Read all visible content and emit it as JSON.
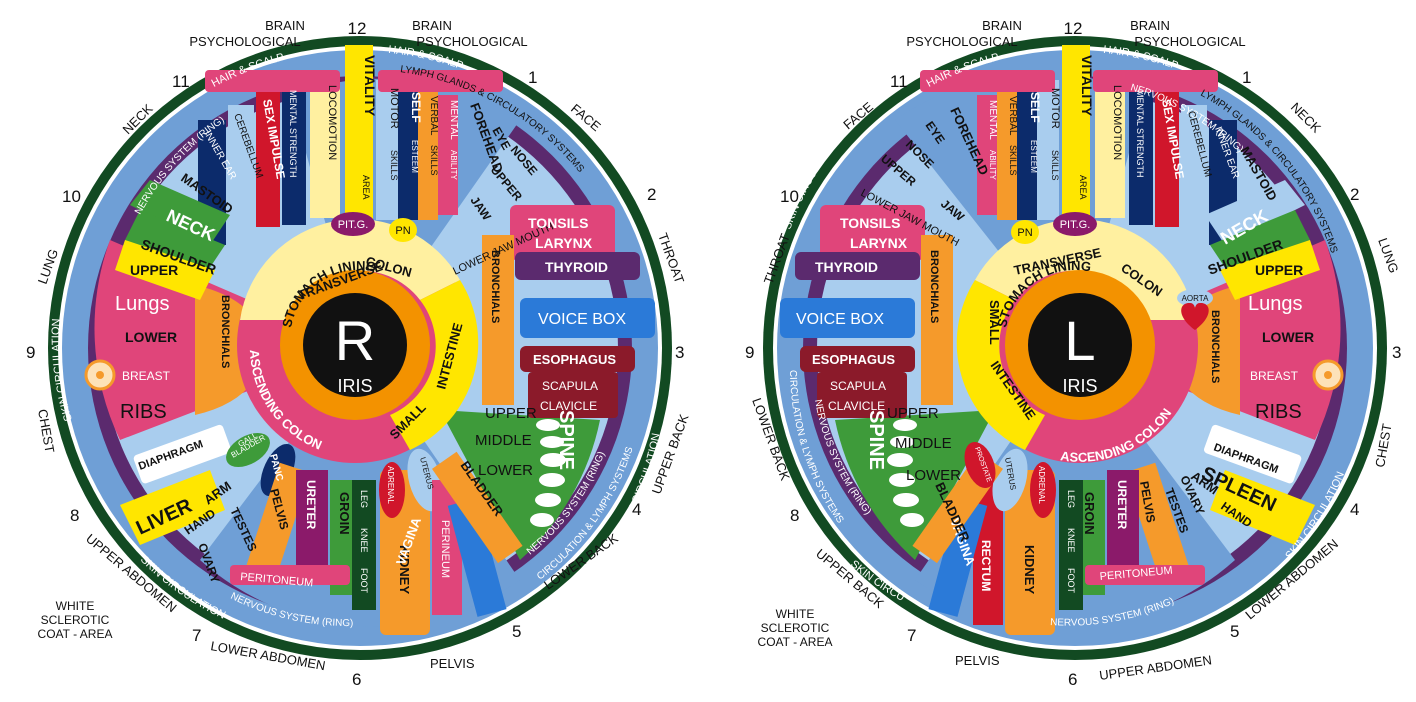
{
  "colors": {
    "ring_green": "#124a22",
    "ring_blue": "#6f9fd6",
    "ring_purple": "#5b2a6e",
    "pink": "#e0457a",
    "yellow": "#ffe600",
    "orange": "#f59a2b",
    "navy": "#0c2b6b",
    "red": "#d0162b",
    "light_blue": "#a9cdee",
    "green": "#3e9b3a",
    "dark_red": "#8b1a2a",
    "pale_yellow": "#fff0a0",
    "core_orange": "#f39200",
    "black": "#111111"
  },
  "right_iris": {
    "center_letter": "R",
    "center_word": "IRIS",
    "inner_ring": [
      "STOMACH LINING"
    ],
    "colon_labels": [
      "TRANSVERSE",
      "COLON",
      "ASCENDING COLON",
      "SMALL",
      "INTESTINE"
    ],
    "outer_labels": {
      "brain_left": [
        "BRAIN",
        "PSYCHOLOGICAL"
      ],
      "brain_right": [
        "BRAIN",
        "PSYCHOLOGICAL"
      ],
      "face": "FACE",
      "throat": "THROAT",
      "upper_back": "UPPER BACK",
      "lower_back": "LOWER BACK",
      "pelvis": "PELVIS",
      "lower_abdomen": "LOWER ABDOMEN",
      "upper_abdomen": "UPPER ABDOMEN",
      "white_sclerotic": [
        "WHITE",
        "SCLEROTIC",
        "COAT - AREA"
      ],
      "chest": "CHEST",
      "lung": "LUNG",
      "neck": "NECK"
    },
    "clock": [
      "12",
      "1",
      "2",
      "3",
      "4",
      "5",
      "6",
      "7",
      "8",
      "9",
      "10",
      "11"
    ],
    "ring_labels": {
      "hair_left": "HAIR & SCALP",
      "hair_right": "HAIR & SCALP",
      "lymph": "LYMPH GLANDS & CIRCULATORY SYSTEMS",
      "nervous_top": "NERVOUS SYSTEM (RING)",
      "nervous_bottom": "NERVOUS SYSTEM (RING)",
      "skin_left": "SKIN CIRCULATION",
      "skin_bottom": "SKIN CIRCULATION",
      "skin_right": "SKIN CIRCULATION",
      "circ_lymph": "CIRCULATION & LYMPH SYSTEMS",
      "nervous_right": "NERVOUS SYSTEM (RING)"
    },
    "organs": {
      "vitality": "VITALITY",
      "area": "AREA",
      "locomotion": "LOCOMOTION",
      "motor": "MOTOR",
      "skills": "SKILLS",
      "self": "SELF",
      "esteem": "ESTEEM",
      "verbal": "VERBAL",
      "skills2": "SKILLS",
      "mental": "MENTAL",
      "ability": "ABILITY",
      "forehead": "FOREHEAD",
      "eye": "EYE",
      "nose": "NOSE",
      "upper": "UPPER",
      "jaw": "JAW",
      "lower_jaw_mouth": "LOWER JAW MOUTH",
      "mental_strength": "MENTAL STRENGTH",
      "sex_impulse": "SEX IMPULSE",
      "cerebellum": "CEREBELLUM",
      "inner_ear": "INNER EAR",
      "mastoid": "MASTOID",
      "pitg": "PIT.G.",
      "pn": "PN",
      "neck": "NECK",
      "shoulder": "SHOULDER",
      "upper_lung": "UPPER",
      "lungs": "Lungs",
      "lower_lung": "LOWER",
      "bronchials": "BRONCHIALS",
      "breast": "BREAST",
      "ribs": "RIBS",
      "diaphragm": "DIAPHRAGM",
      "gall_bladder": [
        "GALL",
        "BLADDER"
      ],
      "liver": "LIVER",
      "hand": "HAND",
      "arm": "ARM",
      "pancreas": "PANC",
      "ovaries": "OVARY",
      "testes": "TESTES",
      "pelvis": "PELVIS",
      "ureter": "URETER",
      "groin": "GROIN",
      "leg": "LEG",
      "knee": "KNEE",
      "foot": "FOOT",
      "peritoneum": "PERITONEUM",
      "adrenal": "ADRENAL",
      "kidney": "KIDNEY",
      "uterus": "UTERUS",
      "perineum": "PERINEUM",
      "vagina": "VAGINA",
      "bladder": "BLADDER",
      "tonsils": "TONSILS",
      "larynx": "LARYNX",
      "thyroid": "THYROID",
      "voice_box": "VOICE BOX",
      "esophagus": "ESOPHAGUS",
      "scapula": "SCAPULA",
      "clavicle": "CLAVICLE",
      "spine": "SPINE",
      "spine_upper": "UPPER",
      "spine_middle": "MIDDLE",
      "spine_lower": "LOWER",
      "bronchials2": "BRONCHIALS"
    }
  },
  "left_iris": {
    "center_letter": "L",
    "center_word": "IRIS",
    "inner_ring": [
      "STOMACH LINING"
    ],
    "colon_labels": [
      "TRANSVERSE",
      "COLON",
      "ASCENDING COLON",
      "SMALL",
      "INTESTINE"
    ],
    "outer_labels": {
      "brain_left": [
        "BRAIN",
        "PSYCHOLOGICAL"
      ],
      "brain_right": [
        "BRAIN",
        "PSYCHOLOGICAL"
      ],
      "face": "FACE",
      "neck": "NECK",
      "throat": "THROAT",
      "lung": "LUNG",
      "chest": "CHEST",
      "lower_back": "LOWER BACK",
      "upper_back": "UPPER BACK",
      "pelvis": "PELVIS",
      "upper_abdomen": "UPPER ABDOMEN",
      "lower_abdomen": "LOWER ABDOMEN",
      "white_sclerotic": [
        "WHITE",
        "SCLEROTIC",
        "COAT - AREA"
      ]
    },
    "clock": [
      "12",
      "1",
      "2",
      "3",
      "4",
      "5",
      "6",
      "7",
      "8",
      "9",
      "10",
      "11"
    ],
    "ring_labels": {
      "hair_left": "HAIR & SCALP",
      "hair_right": "HAIR & SCALP",
      "lymph": "LYMPH GLANDS & CIRCULATORY SYSTEMS",
      "nervous_top": "NERVOUS SYSTEM (RING)",
      "nervous_bottom": "NERVOUS SYSTEM (RING)",
      "skin_left": "SKIN CIRCULATION",
      "skin_bottom": "SKIN CIRCULATION",
      "skin_right": "SKIN CIRCULATION",
      "circ_lymph": "CIRCULATION & LYMPH SYSTEMS",
      "nervous_left": "NERVOUS SYSTEM (RING)"
    },
    "organs": {
      "vitality": "VITALITY",
      "area": "AREA",
      "locomotion": "LOCOMOTION",
      "motor": "MOTOR",
      "skills": "SKILLS",
      "self": "SELF",
      "esteem": "ESTEEM",
      "verbal": "VERBAL",
      "skills2": "SKILLS",
      "mental": "MENTAL",
      "ability": "ABILITY",
      "forehead": "FOREHEAD",
      "eye": "EYE",
      "nose": "NOSE",
      "upper": "UPPER",
      "jaw": "JAW",
      "lower_jaw_mouth": "LOWER JAW MOUTH",
      "mental_strength": "MENTAL STRENGTH",
      "sex_impulse": "SEX IMPULSE",
      "cerebellum": "CEREBELLUM",
      "inner_ear": "INNER EAR",
      "mastoid": "MASTOID",
      "pitg": "PIT.G.",
      "pn": "PN",
      "neck": "NECK",
      "shoulder": "SHOULDER",
      "upper_lung": "UPPER",
      "lungs": "Lungs",
      "lower_lung": "LOWER",
      "bronchials": "BRONCHIALS",
      "aorta": "AORTA",
      "breast": "BREAST",
      "ribs": "RIBS",
      "diaphragm": "DIAPHRAGM",
      "spleen": "SPLEEN",
      "hand": "HAND",
      "arm": "ARM",
      "ovaries": "OVARY",
      "testes": "TESTES",
      "pelvis": "PELVIS",
      "ureter": "URETER",
      "groin": "GROIN",
      "leg": "LEG",
      "knee": "KNEE",
      "foot": "FOOT",
      "peritoneum": "PERITONEUM",
      "adrenal": "ADRENAL",
      "kidney": "KIDNEY",
      "uterus": "UTERUS",
      "rectum": "RECTUM",
      "vagina": "VAGINA",
      "bladder": "BLADDER",
      "prostate": "PROSTATE",
      "tonsils": "TONSILS",
      "larynx": "LARYNX",
      "thyroid": "THYROID",
      "voice_box": "VOICE BOX",
      "esophagus": "ESOPHAGUS",
      "scapula": "SCAPULA",
      "clavicle": "CLAVICLE",
      "spine": "SPINE",
      "spine_upper": "UPPER",
      "spine_middle": "MIDDLE",
      "spine_lower": "LOWER",
      "bronchials2": "BRONCHIALS"
    }
  }
}
